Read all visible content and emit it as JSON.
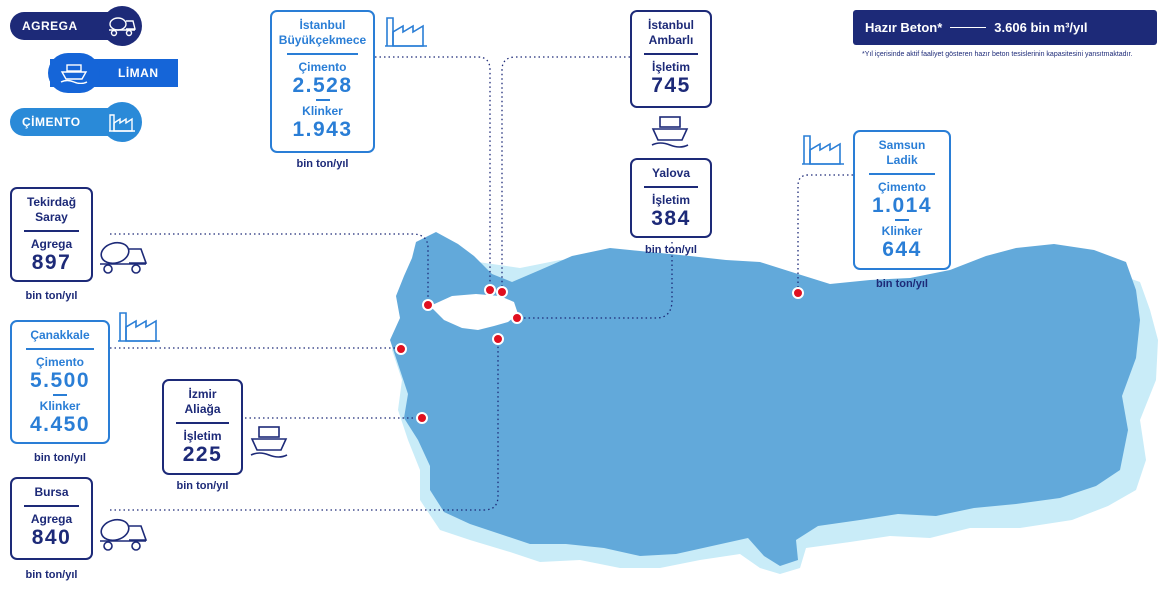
{
  "legend": {
    "agrega": "AGREGA",
    "liman": "LİMAN",
    "cimento": "ÇİMENTO",
    "colors": {
      "agrega": "#1d2a78",
      "liman": "#1565d8",
      "cimento": "#2a8ad8"
    }
  },
  "ready_mix": {
    "label": "Hazır Beton*",
    "value": "3.606 bin m³/yıl",
    "footnote": "*Yıl içerisinde aktif faaliyet gösteren hazır beton tesislerinin kapasitesini yansıtmaktadır."
  },
  "unit": "bin ton/yıl",
  "sites": {
    "istanbul_buyukcekmece": {
      "name1": "İstanbul",
      "name2": "Büyükçekmece",
      "l1": "Çimento",
      "v1": "2.528",
      "l2": "Klinker",
      "v2": "1.943",
      "icon": "factory-icon"
    },
    "istanbul_ambarli": {
      "name1": "İstanbul",
      "name2": "Ambarlı",
      "l1": "İşletim",
      "v1": "745",
      "icon": "ship-icon"
    },
    "yalova": {
      "name1": "Yalova",
      "l1": "İşletim",
      "v1": "384",
      "icon": "ship-icon"
    },
    "samsun_ladik": {
      "name1": "Samsun",
      "name2": "Ladik",
      "l1": "Çimento",
      "v1": "1.014",
      "l2": "Klinker",
      "v2": "644",
      "icon": "factory-icon"
    },
    "tekirdag_saray": {
      "name1": "Tekirdağ",
      "name2": "Saray",
      "l1": "Agrega",
      "v1": "897",
      "icon": "mixer-truck-icon"
    },
    "canakkale": {
      "name1": "Çanakkale",
      "l1": "Çimento",
      "v1": "5.500",
      "l2": "Klinker",
      "v2": "4.450",
      "icon": "factory-icon"
    },
    "izmir_aliaga": {
      "name1": "İzmir",
      "name2": "Aliağa",
      "l1": "İşletim",
      "v1": "225",
      "icon": "ship-icon"
    },
    "bursa": {
      "name1": "Bursa",
      "l1": "Agrega",
      "v1": "840",
      "icon": "mixer-truck-icon"
    }
  },
  "map": {
    "land_color": "#62a9da",
    "shadow_color": "#c9ecf8",
    "marker_color": "#e01020"
  }
}
